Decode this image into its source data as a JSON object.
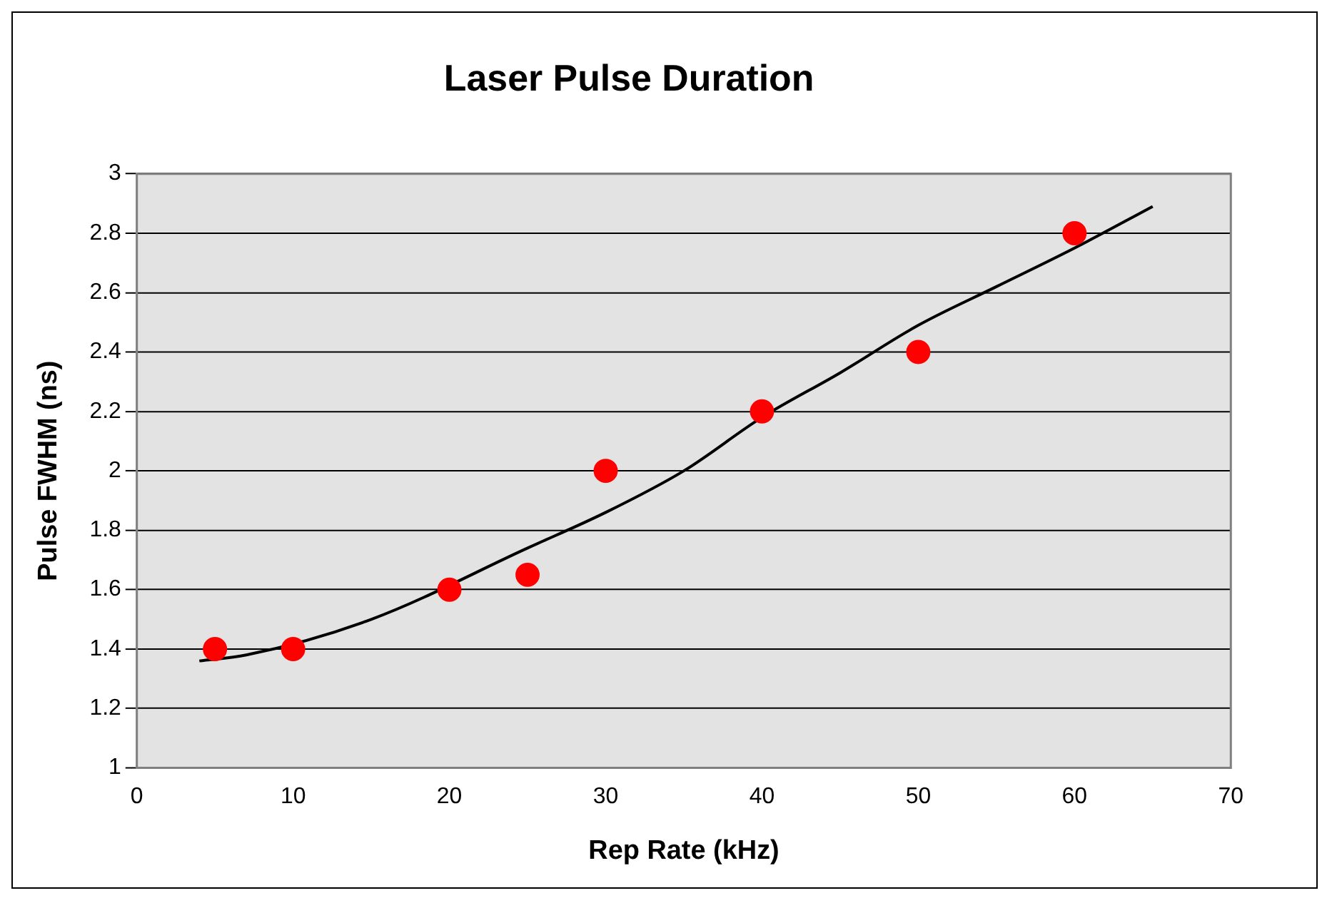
{
  "chart_data": {
    "type": "scatter",
    "title": "Laser Pulse Duration",
    "xlabel": "Rep Rate (kHz)",
    "ylabel": "Pulse FWHM (ns)",
    "x": [
      5,
      10,
      20,
      25,
      30,
      40,
      50,
      60
    ],
    "series": [
      {
        "color": "#ff0000",
        "values": [
          1.4,
          1.4,
          1.6,
          1.65,
          2.0,
          2.2,
          2.4,
          2.8
        ],
        "marker": "circle"
      },
      {
        "type": "line",
        "color": "#000000",
        "x": [
          4,
          7,
          15,
          25,
          30,
          35,
          40,
          45,
          50,
          55,
          60,
          65
        ],
        "values": [
          1.36,
          1.38,
          1.5,
          1.74,
          1.86,
          2.0,
          2.18,
          2.33,
          2.49,
          2.62,
          2.75,
          2.89
        ],
        "marker": "none",
        "line_style": "solid"
      }
    ],
    "xlim": [
      0,
      70
    ],
    "xticks": [
      0,
      10,
      20,
      30,
      40,
      50,
      60,
      70
    ],
    "ylim": [
      1,
      3
    ],
    "yticks": [
      1,
      1.2,
      1.4,
      1.6,
      1.8,
      2,
      2.2,
      2.4,
      2.6,
      2.8,
      3
    ],
    "grid": "y",
    "legend": false
  }
}
